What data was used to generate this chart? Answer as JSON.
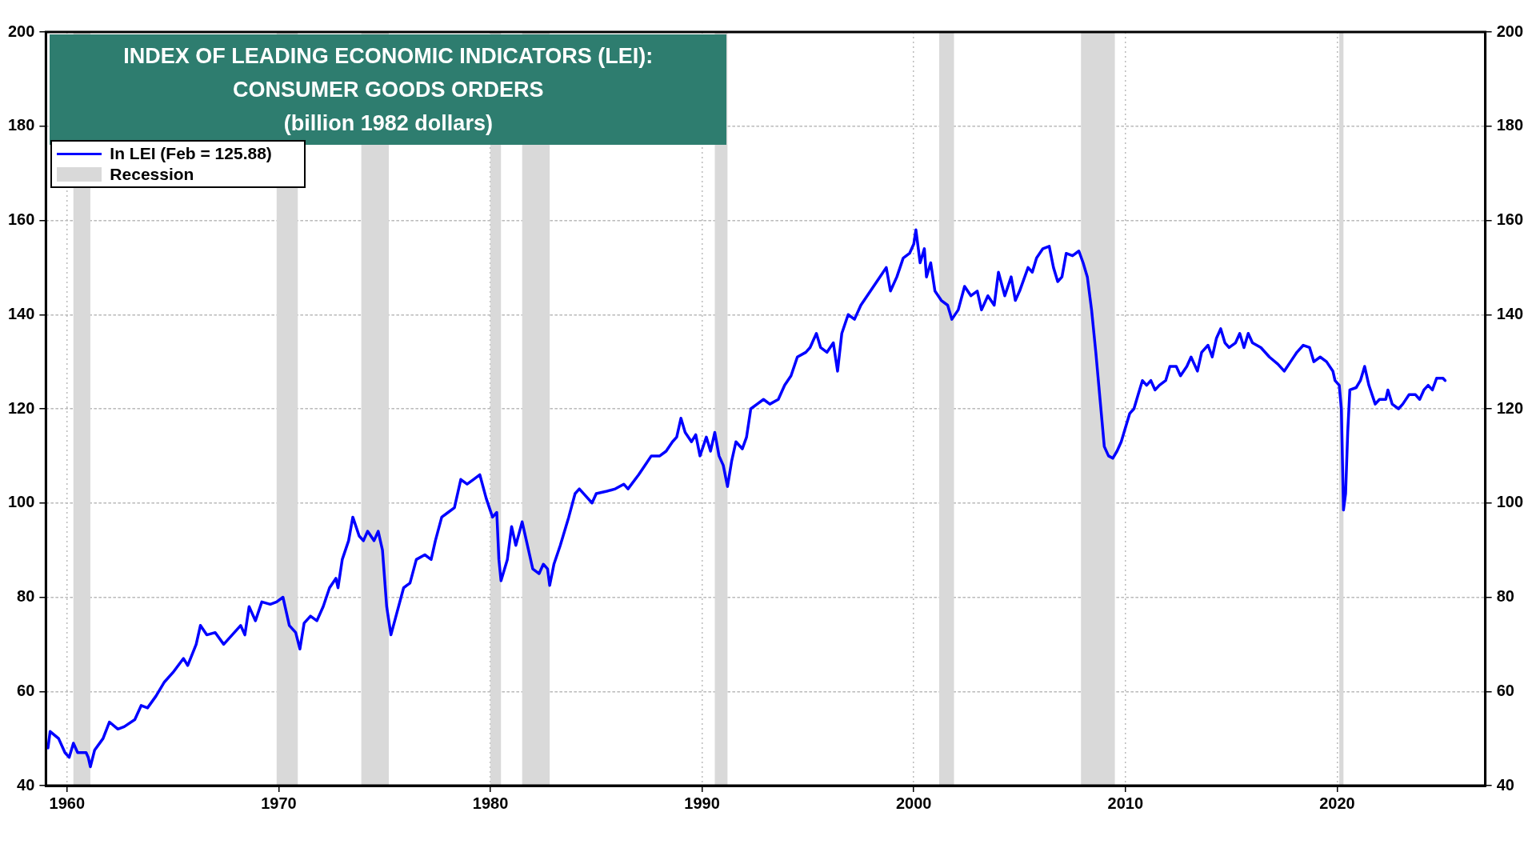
{
  "chart_data": {
    "type": "line",
    "title": "INDEX OF LEADING ECONOMIC INDICATORS (LEI):\nCONSUMER GOODS ORDERS",
    "subtitle": "(billion 1982 dollars)",
    "xlim": [
      1959,
      2027
    ],
    "xticks": [
      1960,
      1970,
      1980,
      1990,
      2000,
      2010,
      2020
    ],
    "ylim": [
      40,
      200
    ],
    "yticks": [
      40,
      60,
      80,
      100,
      120,
      140,
      160,
      180,
      200
    ],
    "y2lim": [
      40,
      200
    ],
    "y2ticks": [
      40,
      60,
      80,
      100,
      120,
      140,
      160,
      180,
      200
    ],
    "grid": true,
    "legend": "top left",
    "line_style": "solid",
    "marker": "none",
    "bands": [
      {
        "axis": "x",
        "from": 1960.3,
        "to": 1961.1,
        "label": "Recession",
        "color": "#d9d9d9"
      },
      {
        "axis": "x",
        "from": 1969.9,
        "to": 1970.9,
        "color": "#d9d9d9"
      },
      {
        "axis": "x",
        "from": 1973.9,
        "to": 1975.2,
        "color": "#d9d9d9"
      },
      {
        "axis": "x",
        "from": 1980.0,
        "to": 1980.5,
        "color": "#d9d9d9"
      },
      {
        "axis": "x",
        "from": 1981.5,
        "to": 1982.8,
        "color": "#d9d9d9"
      },
      {
        "axis": "x",
        "from": 1990.6,
        "to": 1991.2,
        "color": "#d9d9d9"
      },
      {
        "axis": "x",
        "from": 2001.2,
        "to": 2001.9,
        "color": "#d9d9d9"
      },
      {
        "axis": "x",
        "from": 2007.9,
        "to": 2009.5,
        "color": "#d9d9d9"
      },
      {
        "axis": "x",
        "from": 2020.1,
        "to": 2020.3,
        "color": "#d9d9d9"
      }
    ],
    "series": [
      {
        "name": "In LEI (Feb = 125.88)",
        "color": "#0000ff",
        "x": [
          1959.1,
          1959.2,
          1959.6,
          1959.9,
          1960.1,
          1960.3,
          1960.5,
          1960.9,
          1961.0,
          1961.1,
          1961.3,
          1961.7,
          1962.0,
          1962.4,
          1962.7,
          1963.2,
          1963.5,
          1963.8,
          1964.2,
          1964.6,
          1965.0,
          1965.5,
          1965.7,
          1966.1,
          1966.3,
          1966.6,
          1967.0,
          1967.4,
          1967.8,
          1968.2,
          1968.4,
          1968.6,
          1968.9,
          1969.2,
          1969.6,
          1969.9,
          1970.2,
          1970.5,
          1970.8,
          1971.0,
          1971.2,
          1971.5,
          1971.8,
          1972.1,
          1972.4,
          1972.7,
          1972.8,
          1973.0,
          1973.3,
          1973.5,
          1973.8,
          1974.0,
          1974.2,
          1974.5,
          1974.7,
          1974.9,
          1975.1,
          1975.3,
          1975.6,
          1975.9,
          1976.2,
          1976.5,
          1976.9,
          1977.2,
          1977.4,
          1977.7,
          1978.0,
          1978.3,
          1978.6,
          1978.9,
          1979.2,
          1979.5,
          1979.8,
          1980.1,
          1980.3,
          1980.4,
          1980.5,
          1980.8,
          1981.0,
          1981.2,
          1981.5,
          1981.8,
          1982.0,
          1982.3,
          1982.5,
          1982.7,
          1982.8,
          1983.0,
          1983.3,
          1983.7,
          1984.0,
          1984.2,
          1984.5,
          1984.8,
          1985.0,
          1985.5,
          1985.9,
          1986.3,
          1986.5,
          1987.0,
          1987.3,
          1987.6,
          1988.0,
          1988.3,
          1988.6,
          1988.8,
          1989.0,
          1989.2,
          1989.5,
          1989.7,
          1989.9,
          1990.2,
          1990.4,
          1990.6,
          1990.8,
          1991.0,
          1991.2,
          1991.4,
          1991.6,
          1991.9,
          1992.1,
          1992.3,
          1992.6,
          1992.9,
          1993.2,
          1993.6,
          1993.9,
          1994.2,
          1994.5,
          1994.9,
          1995.1,
          1995.4,
          1995.6,
          1995.9,
          1996.2,
          1996.4,
          1996.6,
          1996.9,
          1997.2,
          1997.5,
          1997.8,
          1998.1,
          1998.4,
          1998.7,
          1998.9,
          1999.2,
          1999.5,
          1999.8,
          2000.0,
          2000.1,
          2000.3,
          2000.5,
          2000.6,
          2000.8,
          2001.0,
          2001.3,
          2001.6,
          2001.8,
          2002.1,
          2002.4,
          2002.7,
          2003.0,
          2003.2,
          2003.5,
          2003.8,
          2004.0,
          2004.3,
          2004.6,
          2004.8,
          2005.0,
          2005.4,
          2005.6,
          2005.8,
          2006.1,
          2006.4,
          2006.6,
          2006.8,
          2007.0,
          2007.2,
          2007.5,
          2007.8,
          2008.0,
          2008.2,
          2008.4,
          2008.6,
          2008.8,
          2009.0,
          2009.2,
          2009.4,
          2009.6,
          2009.8,
          2010.0,
          2010.2,
          2010.4,
          2010.6,
          2010.8,
          2011.0,
          2011.2,
          2011.4,
          2011.6,
          2011.9,
          2012.1,
          2012.4,
          2012.6,
          2012.9,
          2013.1,
          2013.4,
          2013.6,
          2013.9,
          2014.1,
          2014.3,
          2014.5,
          2014.7,
          2014.9,
          2015.2,
          2015.4,
          2015.6,
          2015.8,
          2016.0,
          2016.4,
          2016.8,
          2017.2,
          2017.5,
          2017.8,
          2018.1,
          2018.4,
          2018.7,
          2018.9,
          2019.2,
          2019.5,
          2019.8,
          2019.9,
          2020.1,
          2020.2,
          2020.3,
          2020.4,
          2020.5,
          2020.6,
          2020.9,
          2021.1,
          2021.3,
          2021.5,
          2021.8,
          2022.0,
          2022.3,
          2022.4,
          2022.6,
          2022.9,
          2023.1,
          2023.4,
          2023.7,
          2023.9,
          2024.1,
          2024.3,
          2024.5,
          2024.7,
          2025.0,
          2025.1
        ],
        "values": [
          48,
          51.5,
          50,
          47,
          46,
          49,
          47,
          47,
          46,
          44,
          47.5,
          50,
          53.5,
          52,
          52.5,
          54,
          57,
          56.5,
          59,
          62,
          64,
          67,
          65.5,
          70,
          74,
          72,
          72.5,
          70,
          72,
          74,
          72,
          78,
          75,
          79,
          78.5,
          79,
          80,
          74,
          72.5,
          69,
          74.5,
          76,
          75,
          78,
          82,
          84,
          82,
          88,
          92,
          97,
          93,
          92,
          94,
          92,
          94,
          90,
          78,
          72,
          77,
          82,
          83,
          88,
          89,
          88,
          92,
          97,
          98,
          99,
          105,
          104,
          105,
          106,
          101,
          97,
          98,
          88,
          83.5,
          88,
          95,
          91,
          96,
          90,
          86,
          85,
          87,
          86,
          82.5,
          87,
          91,
          97,
          102,
          103,
          101.5,
          100,
          102,
          102.5,
          103,
          104,
          103,
          106,
          108,
          110,
          110,
          111,
          113,
          114,
          118,
          115,
          113,
          114.5,
          110,
          114,
          111,
          115,
          110,
          108,
          103.5,
          109,
          113,
          111.5,
          114,
          120,
          121,
          122,
          121,
          122,
          125,
          127,
          131,
          132,
          133,
          136,
          133,
          132,
          134,
          128,
          136,
          140,
          139,
          142,
          144,
          146,
          148,
          150,
          145,
          148,
          152,
          153,
          155,
          158,
          151,
          154,
          148,
          151,
          145,
          143,
          142,
          139,
          141,
          146,
          144,
          145,
          141,
          144,
          142,
          149,
          144,
          148,
          143,
          145,
          150,
          149,
          152,
          154,
          154.5,
          150,
          147,
          148,
          153,
          152.5,
          153.5,
          151,
          148,
          141,
          132,
          122,
          112,
          110,
          109.5,
          111,
          113,
          116,
          119,
          120,
          123,
          126,
          125,
          126,
          124,
          125,
          126,
          129,
          129,
          127,
          129,
          131,
          128,
          132,
          133.5,
          131,
          135,
          137,
          134,
          133,
          134,
          136,
          133,
          136,
          134,
          133,
          131,
          129.5,
          128,
          130,
          132,
          133.5,
          133,
          130,
          131,
          130,
          128,
          126,
          125,
          120,
          98.5,
          102,
          115,
          124,
          124.5,
          126,
          129,
          125,
          121,
          122,
          122,
          124,
          121,
          120,
          121,
          123,
          123,
          122,
          124,
          125,
          124,
          126.5,
          126.5,
          126
        ]
      }
    ]
  }
}
